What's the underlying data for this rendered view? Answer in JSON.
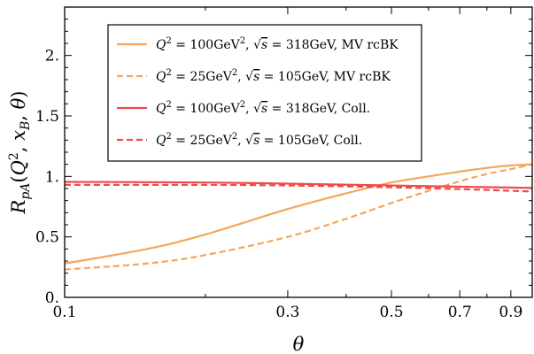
{
  "chart_data": {
    "type": "line",
    "xlabel": "θ",
    "ylabel": "R_pA(Q², x_B, θ)",
    "xscale": "log",
    "xlim": [
      0.1,
      1.0
    ],
    "ylim": [
      0.0,
      2.4
    ],
    "xticks": [
      {
        "value": 0.1,
        "label": "0.1"
      },
      {
        "value": 0.3,
        "label": "0.3"
      },
      {
        "value": 0.5,
        "label": "0.5"
      },
      {
        "value": 0.7,
        "label": "0.7"
      },
      {
        "value": 0.9,
        "label": "0.9"
      }
    ],
    "yticks": [
      {
        "value": 0.0,
        "label": "0."
      },
      {
        "value": 0.5,
        "label": "0.5"
      },
      {
        "value": 1.0,
        "label": "1."
      },
      {
        "value": 1.5,
        "label": "1.5"
      },
      {
        "value": 2.0,
        "label": "2."
      }
    ],
    "legend_position": "top-left",
    "series": [
      {
        "name": "Q² = 100GeV², √s = 318GeV, MV rcBK",
        "legend": {
          "lhs": "Q",
          "sup1": "2",
          "mid": " = 100GeV",
          "sup2": "2",
          "sep": ", ",
          "sqrt_arg": "s",
          "rhs": " = 318GeV, MV rcBK"
        },
        "color": "#F5A65B",
        "dash": "solid",
        "x": [
          0.1,
          0.15,
          0.2,
          0.3,
          0.4,
          0.5,
          0.6,
          0.7,
          0.8,
          0.9,
          1.0
        ],
        "y": [
          0.28,
          0.4,
          0.52,
          0.73,
          0.86,
          0.95,
          1.0,
          1.04,
          1.07,
          1.09,
          1.1
        ]
      },
      {
        "name": "Q² = 25GeV², √s = 105GeV, MV rcBK",
        "legend": {
          "lhs": "Q",
          "sup1": "2",
          "mid": " = 25GeV",
          "sup2": "2",
          "sep": ", ",
          "sqrt_arg": "s",
          "rhs": " = 105GeV, MV rcBK"
        },
        "color": "#F5A65B",
        "dash": "dashed",
        "x": [
          0.1,
          0.15,
          0.2,
          0.3,
          0.4,
          0.5,
          0.6,
          0.7,
          0.8,
          0.9,
          1.0
        ],
        "y": [
          0.23,
          0.28,
          0.35,
          0.5,
          0.65,
          0.78,
          0.88,
          0.96,
          1.02,
          1.06,
          1.1
        ]
      },
      {
        "name": "Q² = 100GeV², √s = 318GeV, Coll.",
        "legend": {
          "lhs": "Q",
          "sup1": "2",
          "mid": " = 100GeV",
          "sup2": "2",
          "sep": ", ",
          "sqrt_arg": "s",
          "rhs": " = 318GeV, Coll."
        },
        "color": "#F04A4A",
        "dash": "solid",
        "x": [
          0.1,
          0.2,
          0.3,
          0.5,
          0.7,
          1.0
        ],
        "y": [
          0.955,
          0.95,
          0.94,
          0.925,
          0.915,
          0.905
        ]
      },
      {
        "name": "Q² = 25GeV², √s = 105GeV, Coll.",
        "legend": {
          "lhs": "Q",
          "sup1": "2",
          "mid": " = 25GeV",
          "sup2": "2",
          "sep": ", ",
          "sqrt_arg": "s",
          "rhs": " = 105GeV, Coll."
        },
        "color": "#F04A4A",
        "dash": "dashed",
        "x": [
          0.1,
          0.2,
          0.3,
          0.5,
          0.7,
          1.0
        ],
        "y": [
          0.93,
          0.93,
          0.925,
          0.91,
          0.895,
          0.875
        ]
      }
    ]
  }
}
